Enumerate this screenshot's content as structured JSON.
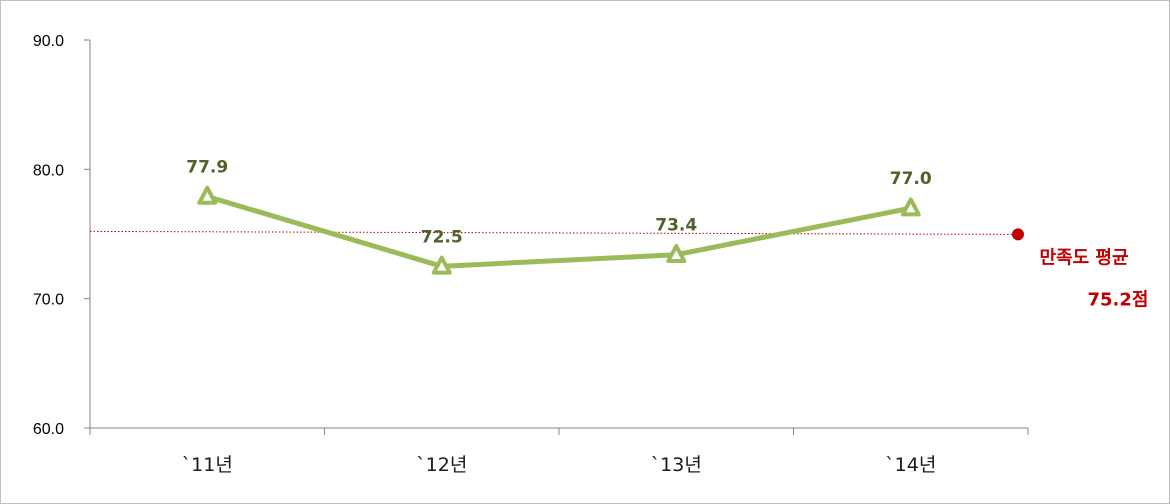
{
  "chart_data": {
    "type": "line",
    "categories": [
      "`11년",
      "`12년",
      "`13년",
      "`14년"
    ],
    "series": [
      {
        "values": [
          77.9,
          72.5,
          73.4,
          77.0
        ],
        "data_labels": [
          "77.9",
          "72.5",
          "73.4",
          "77.0"
        ],
        "color": "#9bbb59",
        "label_color": "#4f6228",
        "marker": "triangle"
      }
    ],
    "ylim": [
      60.0,
      90.0
    ],
    "yticks": [
      "60.0",
      "70.0",
      "80.0",
      "90.0"
    ],
    "title": "",
    "xlabel": "",
    "ylabel": "",
    "grid": false,
    "reference_line": {
      "value": 75.2,
      "label_line1": "만족도 평균",
      "label_line2": "75.2점",
      "color": "#c00000",
      "style": "dotted"
    }
  }
}
